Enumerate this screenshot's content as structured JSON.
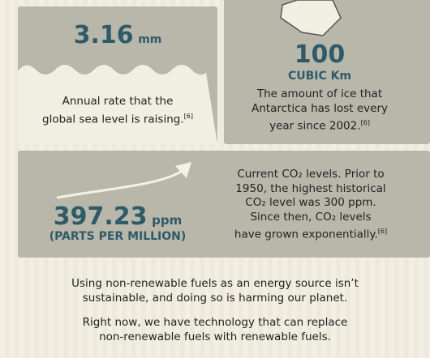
{
  "sea_level": {
    "value": "3.16",
    "unit": "mm",
    "caption_lines": [
      "Annual rate that the",
      "global sea level is raising."
    ],
    "citation": "[6]"
  },
  "ice": {
    "value": "100",
    "unit": "CUBIC Km",
    "caption_lines": [
      "The amount of ice that",
      "Antarctica has lost every",
      "year since 2002."
    ],
    "citation": "[6]"
  },
  "co2": {
    "value": "397.23",
    "unit": "ppm",
    "unit_note": "(PARTS PER MILLION)",
    "caption_lines": [
      "Current CO₂ levels. Prior to",
      "1950, the highest historical",
      "CO₂ level was 300 ppm.",
      "Since then, CO₂ levels",
      "have grown exponentially."
    ],
    "citation": "[6]"
  },
  "footer": {
    "paragraphs": [
      [
        "Using non-renewable fuels as an energy source isn’t",
        "sustainable, and doing so is harming our planet."
      ],
      [
        "Right now, we have technology that can replace",
        "non-renewable fuels with renewable fuels."
      ]
    ]
  }
}
